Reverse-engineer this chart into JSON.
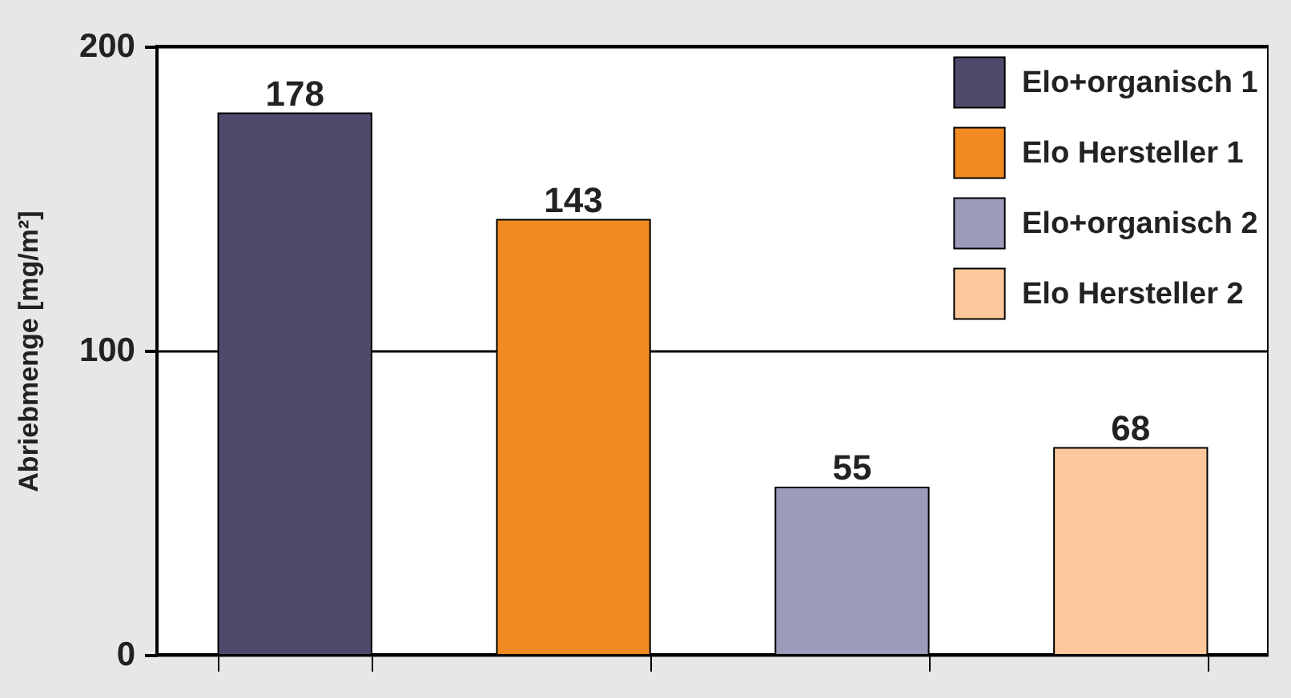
{
  "chart_data": {
    "type": "bar",
    "ylabel": "Abriebmenge [mg/m²]",
    "categories": [
      null,
      null,
      null,
      null
    ],
    "series": [
      {
        "name": "Elo+organisch 1",
        "color": "#4f4a6b",
        "values": [
          178,
          null,
          null,
          null
        ]
      },
      {
        "name": "Elo  Hersteller 1",
        "color": "#f18a21",
        "values": [
          null,
          143,
          null,
          null
        ]
      },
      {
        "name": "Elo+organisch 2",
        "color": "#9c9bb9",
        "values": [
          null,
          null,
          55,
          null
        ]
      },
      {
        "name": "Elo  Hersteller 2",
        "color": "#fcc89b",
        "values": [
          null,
          null,
          null,
          68
        ]
      }
    ],
    "ylim": [
      0,
      200
    ],
    "yticks": [
      0,
      100,
      200
    ],
    "grid": "y",
    "legend": "top right",
    "data_labels": true
  }
}
